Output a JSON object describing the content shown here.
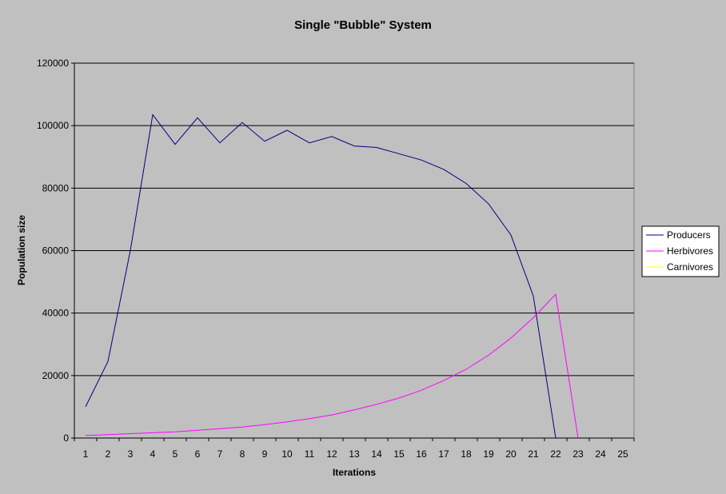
{
  "chart_data": {
    "type": "line",
    "title": "Single \"Bubble\" System",
    "xlabel": "Iterations",
    "ylabel": "Population size",
    "x": [
      1,
      2,
      3,
      4,
      5,
      6,
      7,
      8,
      9,
      10,
      11,
      12,
      13,
      14,
      15,
      16,
      17,
      18,
      19,
      20,
      21,
      22,
      23,
      24,
      25
    ],
    "ylim": [
      0,
      120000
    ],
    "yticks": [
      0,
      20000,
      40000,
      60000,
      80000,
      100000,
      120000
    ],
    "grid": "horizontal",
    "legend_position": "right",
    "plot_background": "#c0c0c0",
    "series": [
      {
        "name": "Producers",
        "color": "#000080",
        "values": [
          10000,
          24500,
          60000,
          103500,
          94000,
          102500,
          94500,
          101000,
          95000,
          98500,
          94500,
          96500,
          93500,
          93000,
          91000,
          89000,
          86000,
          81500,
          75000,
          65000,
          45500,
          0,
          null,
          null,
          null
        ]
      },
      {
        "name": "Herbivores",
        "color": "#ff00ff",
        "values": [
          800,
          1100,
          1400,
          1700,
          2000,
          2500,
          3000,
          3500,
          4300,
          5200,
          6200,
          7400,
          9000,
          10800,
          12800,
          15300,
          18400,
          22000,
          26500,
          32000,
          38500,
          46000,
          0,
          null,
          null
        ]
      },
      {
        "name": "Carnivores",
        "color": "#ffff00",
        "values": [
          null,
          null,
          null,
          null,
          null,
          null,
          null,
          null,
          null,
          null,
          null,
          null,
          null,
          0,
          0,
          0,
          0,
          0,
          0,
          0,
          0,
          0,
          0,
          0,
          null
        ]
      }
    ]
  }
}
